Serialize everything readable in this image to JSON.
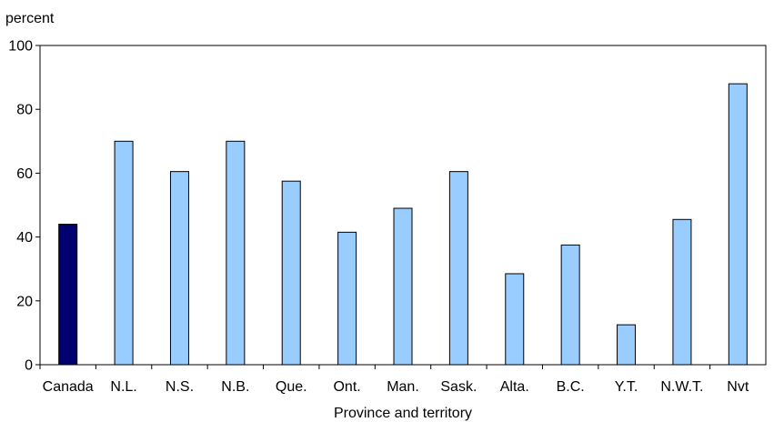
{
  "chart_data": {
    "type": "bar",
    "title": "",
    "ylabel": "percent",
    "xlabel": "Province and territory",
    "ylim": [
      0,
      100
    ],
    "yticks": [
      0,
      20,
      40,
      60,
      80,
      100
    ],
    "grid": false,
    "legend": "none",
    "categories": [
      "Canada",
      "N.L.",
      "N.S.",
      "N.B.",
      "Que.",
      "Ont.",
      "Man.",
      "Sask.",
      "Alta.",
      "B.C.",
      "Y.T.",
      "N.W.T.",
      "Nvt"
    ],
    "values": [
      44,
      70,
      60.5,
      70,
      57.5,
      41.5,
      49,
      60.5,
      28.5,
      37.5,
      12.5,
      45.5,
      88
    ],
    "highlight_category": "Canada",
    "colors": {
      "highlight": "#000070",
      "bar": "#99ccff",
      "stroke": "#000000"
    }
  }
}
